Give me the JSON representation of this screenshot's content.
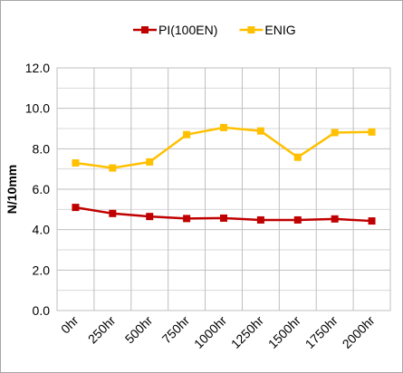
{
  "chart_data": {
    "type": "line",
    "title": "",
    "xlabel": "",
    "ylabel": "N/10mm",
    "categories": [
      "0hr",
      "250hr",
      "500hr",
      "750hr",
      "1000hr",
      "1250hr",
      "1500hr",
      "1750hr",
      "2000hr"
    ],
    "ylim": [
      0,
      12
    ],
    "yticks": [
      "0.0",
      "2.0",
      "4.0",
      "6.0",
      "8.0",
      "10.0",
      "12.0"
    ],
    "grid": true,
    "legend_position": "top",
    "series": [
      {
        "name": "PI(100EN)",
        "color": "#c00000",
        "marker": "square",
        "values": [
          5.1,
          4.8,
          4.65,
          4.55,
          4.57,
          4.48,
          4.48,
          4.53,
          4.43
        ]
      },
      {
        "name": "ENIG",
        "color": "#ffc000",
        "marker": "square",
        "values": [
          7.3,
          7.05,
          7.35,
          8.7,
          9.05,
          8.88,
          7.58,
          8.8,
          8.83
        ]
      }
    ]
  }
}
